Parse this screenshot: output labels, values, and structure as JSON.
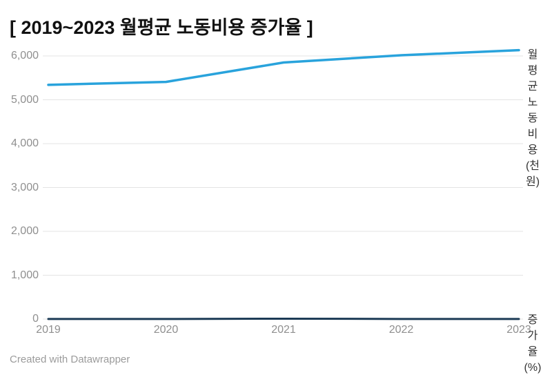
{
  "header": {
    "title": "[ 2019~2023 월평균 노동비용 증가율 ]"
  },
  "footer": {
    "attribution": "Created with Datawrapper"
  },
  "colors": {
    "background": "#FFFFFF",
    "title_text": "#111111",
    "grid": "#E3E3E3",
    "tick_text": "#8F8F8F",
    "series_label_text": "#333333",
    "footer_text": "#9B9B9B",
    "cost_line": "#29A3DC",
    "growth_line": "#1B3A55"
  },
  "chart_data": {
    "type": "line",
    "title": "[ 2019~2023 월평균 노동비용 증가율 ]",
    "x": [
      "2019",
      "2020",
      "2021",
      "2022",
      "2023"
    ],
    "series": [
      {
        "name": "월평균 노동비용 (천원)",
        "label_lines": [
          "월",
          "평",
          "균",
          "노",
          "동",
          "비",
          "용",
          "(천",
          "원)"
        ],
        "values": [
          5341,
          5408,
          5850,
          6016,
          6131
        ],
        "color": "#29A3DC",
        "stroke_width": 3.5
      },
      {
        "name": "증가율 (%)",
        "label_lines": [
          "증",
          "가",
          "율",
          "(%)"
        ],
        "values": [
          2.7,
          1.3,
          8.2,
          2.8,
          1.9
        ],
        "color": "#1B3A55",
        "stroke_width": 3
      }
    ],
    "xlabel": "",
    "ylabel": "",
    "ylim": [
      0,
      6000
    ],
    "y_tick_values": [
      6000,
      5000,
      4000,
      3000,
      2000,
      1000,
      0
    ],
    "y_tick_labels": [
      "6,000",
      "5,000",
      "4,000",
      "3,000",
      "2,000",
      "1,000",
      "0"
    ],
    "grid": true,
    "legend_position": "direct-label-right",
    "attribution": "Created with Datawrapper"
  }
}
